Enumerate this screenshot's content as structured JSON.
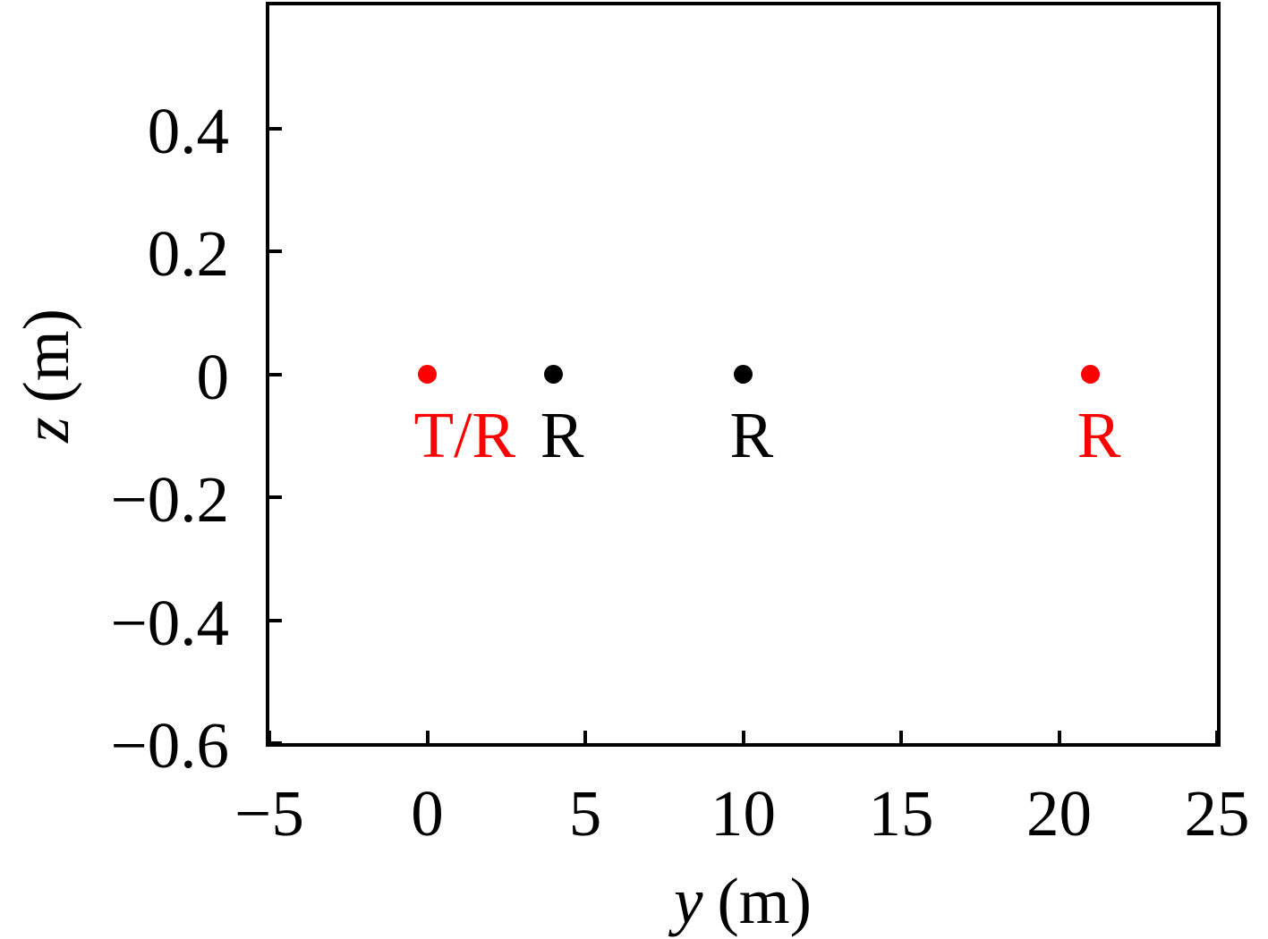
{
  "figure": {
    "background": "#ffffff",
    "frame_color": "#000000",
    "accent_red": "#ff0000",
    "black": "#000000"
  },
  "chart_data": {
    "type": "scatter",
    "title": "",
    "xlabel": "y (m)",
    "ylabel": "z (m)",
    "xlabel_var": "y",
    "xlabel_unit": "(m)",
    "ylabel_var": "z",
    "ylabel_unit": "(m)",
    "xlim": [
      -5,
      25
    ],
    "ylim": [
      -0.6,
      0.6
    ],
    "grid": false,
    "legend": false,
    "x_ticks": [
      {
        "value": -5,
        "label": "−5"
      },
      {
        "value": 0,
        "label": "0"
      },
      {
        "value": 5,
        "label": "5"
      },
      {
        "value": 10,
        "label": "10"
      },
      {
        "value": 15,
        "label": "15"
      },
      {
        "value": 20,
        "label": "20"
      },
      {
        "value": 25,
        "label": "25"
      }
    ],
    "y_ticks": [
      {
        "value": 0.4,
        "label": "0.4"
      },
      {
        "value": 0.2,
        "label": "0.2"
      },
      {
        "value": 0,
        "label": "0"
      },
      {
        "value": -0.2,
        "label": "−0.2"
      },
      {
        "value": -0.4,
        "label": "−0.4"
      },
      {
        "value": -0.6,
        "label": "−0.6"
      }
    ],
    "points": [
      {
        "y": 0,
        "z": 0,
        "label": "T/R",
        "color": "#ff0000"
      },
      {
        "y": 4,
        "z": 0,
        "label": "R",
        "color": "#000000"
      },
      {
        "y": 10,
        "z": 0,
        "label": "R",
        "color": "#000000"
      },
      {
        "y": 21,
        "z": 0,
        "label": "R",
        "color": "#ff0000"
      }
    ]
  }
}
